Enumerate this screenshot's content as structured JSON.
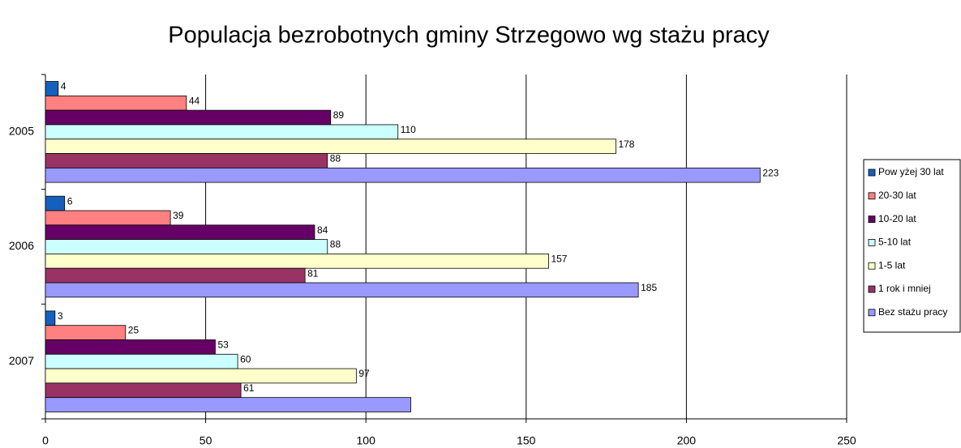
{
  "chart_data": {
    "type": "barh",
    "title": "Populacja bezrobotnych gminy Strzegowo wg stażu pracy",
    "categories": [
      "2005",
      "2006",
      "2007"
    ],
    "series": [
      {
        "name": "Pow yżej 30 lat",
        "color": "#1560bd",
        "values": [
          4,
          6,
          3
        ]
      },
      {
        "name": "20-30 lat",
        "color": "#ff8080",
        "values": [
          44,
          39,
          25
        ]
      },
      {
        "name": "10-20 lat",
        "color": "#660066",
        "values": [
          89,
          84,
          53
        ]
      },
      {
        "name": "5-10 lat",
        "color": "#ccffff",
        "values": [
          110,
          88,
          60
        ]
      },
      {
        "name": "1-5 lat",
        "color": "#ffffcc",
        "values": [
          178,
          157,
          97
        ]
      },
      {
        "name": "1 rok i mniej",
        "color": "#993366",
        "values": [
          88,
          81,
          61
        ]
      },
      {
        "name": "Bez stażu pracy",
        "color": "#9999ff",
        "values": [
          223,
          185,
          114
        ],
        "value_labels": [
          "223",
          "185",
          null
        ]
      }
    ],
    "xlim": [
      0,
      250
    ],
    "xticks": [
      0,
      50,
      100,
      150,
      200,
      250
    ],
    "grid": true,
    "legend": "right"
  }
}
